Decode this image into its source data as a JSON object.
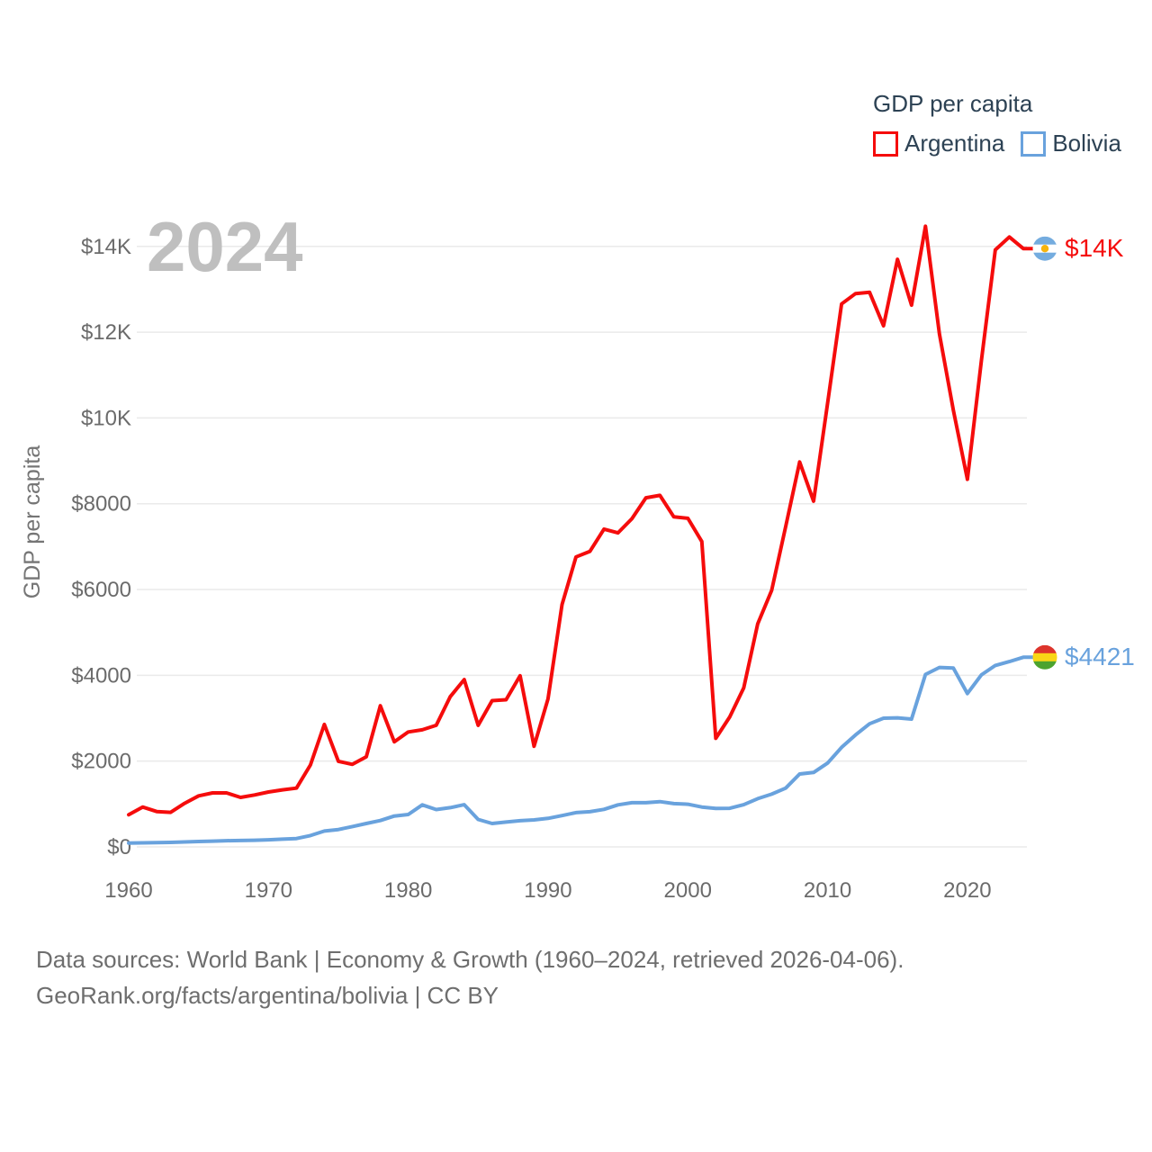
{
  "watermark": "2024",
  "legend": {
    "title": "GDP per capita",
    "items": [
      {
        "label": "Argentina",
        "color": "#f50c0c"
      },
      {
        "label": "Bolivia",
        "color": "#69a2dd"
      }
    ]
  },
  "y_axis": {
    "title": "GDP per capita",
    "ticks": [
      {
        "value": 0,
        "label": "$0"
      },
      {
        "value": 2000,
        "label": "$2000"
      },
      {
        "value": 4000,
        "label": "$4000"
      },
      {
        "value": 6000,
        "label": "$6000"
      },
      {
        "value": 8000,
        "label": "$8000"
      },
      {
        "value": 10000,
        "label": "$10K"
      },
      {
        "value": 12000,
        "label": "$12K"
      },
      {
        "value": 14000,
        "label": "$14K"
      }
    ]
  },
  "x_axis": {
    "ticks": [
      1960,
      1970,
      1980,
      1990,
      2000,
      2010,
      2020
    ]
  },
  "footer": {
    "line1": "Data sources: World Bank | Economy & Growth (1960–2024, retrieved 2026-04-06).",
    "line2": "GeoRank.org/facts/argentina/bolivia | CC BY"
  },
  "icons": {
    "argentina_flag": {
      "stripes": [
        "#74ACDF",
        "#FFFFFF",
        "#74ACDF"
      ],
      "sun": "#F6B40E"
    },
    "bolivia_flag": {
      "stripes": [
        "#DD342C",
        "#F9D616",
        "#4CA32F"
      ]
    }
  },
  "colors": {
    "grid": "#eaeaea",
    "tick_text": "#6b6b6b",
    "axis_title": "#757575",
    "watermark": "#bfbfbf",
    "legend_text": "#2d4254"
  },
  "chart_data": {
    "type": "line",
    "title": "GDP per capita",
    "ylabel": "GDP per capita",
    "xlim": [
      1960,
      2024
    ],
    "ylim": [
      0,
      14500
    ],
    "grid": true,
    "legend_position": "top-right",
    "years": [
      1960,
      1961,
      1962,
      1963,
      1964,
      1965,
      1966,
      1967,
      1968,
      1969,
      1970,
      1971,
      1972,
      1973,
      1974,
      1975,
      1976,
      1977,
      1978,
      1979,
      1980,
      1981,
      1982,
      1983,
      1984,
      1985,
      1986,
      1987,
      1988,
      1989,
      1990,
      1991,
      1992,
      1993,
      1994,
      1995,
      1996,
      1997,
      1998,
      1999,
      2000,
      2001,
      2002,
      2003,
      2004,
      2005,
      2006,
      2007,
      2008,
      2009,
      2010,
      2011,
      2012,
      2013,
      2014,
      2015,
      2016,
      2017,
      2018,
      2019,
      2020,
      2021,
      2022,
      2023,
      2024
    ],
    "series": [
      {
        "name": "Argentina",
        "color": "#f50c0c",
        "flag": "argentina",
        "end_label": "$14K",
        "values": [
          750,
          930,
          825,
          805,
          1015,
          1190,
          1260,
          1260,
          1155,
          1210,
          1280,
          1330,
          1370,
          1910,
          2855,
          1995,
          1925,
          2100,
          3290,
          2450,
          2680,
          2730,
          2835,
          3500,
          3900,
          2835,
          3410,
          3430,
          3990,
          2345,
          3450,
          5650,
          6760,
          6890,
          7410,
          7320,
          7650,
          8140,
          8195,
          7695,
          7660,
          7120,
          2530,
          3030,
          3710,
          5200,
          5980,
          7470,
          8975,
          8060,
          10350,
          12660,
          12900,
          12930,
          12150,
          13700,
          12630,
          14470,
          11960,
          10180,
          8570,
          11330,
          13920,
          14220,
          13950
        ]
      },
      {
        "name": "Bolivia",
        "color": "#69a2dd",
        "flag": "bolivia",
        "end_label": "$4421",
        "values": [
          90,
          95,
          100,
          105,
          115,
          125,
          135,
          145,
          150,
          155,
          165,
          180,
          195,
          265,
          370,
          405,
          475,
          545,
          615,
          720,
          755,
          980,
          870,
          915,
          985,
          640,
          545,
          580,
          610,
          630,
          665,
          730,
          800,
          820,
          875,
          980,
          1030,
          1030,
          1055,
          1010,
          995,
          930,
          895,
          900,
          985,
          1125,
          1230,
          1370,
          1700,
          1735,
          1955,
          2320,
          2610,
          2870,
          3000,
          3010,
          2980,
          4020,
          4185,
          4170,
          3575,
          4010,
          4230,
          4320,
          4421
        ]
      }
    ]
  }
}
